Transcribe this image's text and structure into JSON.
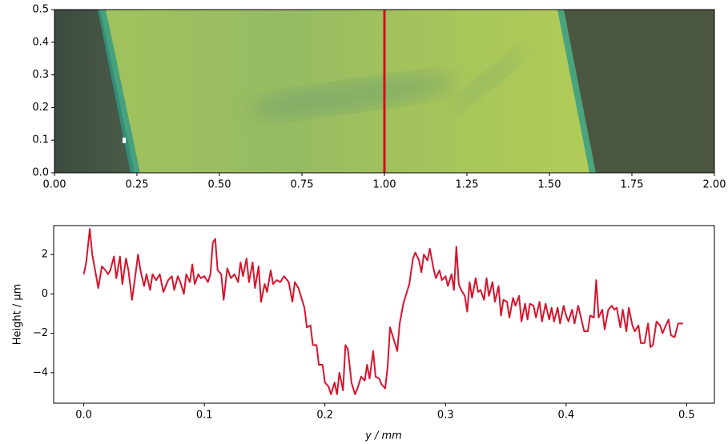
{
  "chart_data": [
    {
      "type": "image",
      "xlim": [
        0,
        2
      ],
      "ylim": [
        0,
        0.5
      ],
      "xticks": [
        {
          "value": 0,
          "label": "0.00"
        },
        {
          "value": 0.25,
          "label": "0.25"
        },
        {
          "value": 0.5,
          "label": "0.50"
        },
        {
          "value": 0.75,
          "label": "0.75"
        },
        {
          "value": 1,
          "label": "1.00"
        },
        {
          "value": 1.25,
          "label": "1.25"
        },
        {
          "value": 1.5,
          "label": "1.50"
        },
        {
          "value": 1.75,
          "label": "1.75"
        },
        {
          "value": 2,
          "label": "2.00"
        }
      ],
      "yticks": [
        {
          "value": 0,
          "label": "0.0"
        },
        {
          "value": 0.1,
          "label": "0.1"
        },
        {
          "value": 0.2,
          "label": "0.2"
        },
        {
          "value": 0.3,
          "label": "0.3"
        },
        {
          "value": 0.4,
          "label": "0.4"
        },
        {
          "value": 0.5,
          "label": "0.5"
        }
      ],
      "vline": {
        "x": 1.0,
        "color": "#d0101c"
      }
    },
    {
      "type": "line",
      "xlabel": "y / mm",
      "ylabel": "Height / µm",
      "xlim": [
        -0.025,
        0.523
      ],
      "ylim": [
        -5.55,
        3.47
      ],
      "xticks": [
        {
          "value": 0,
          "label": "0.0"
        },
        0.1,
        0.2,
        0.3,
        0.4,
        0.5
      ],
      "yticks": [
        {
          "value": -4,
          "label": "−4"
        },
        {
          "value": -2,
          "label": "−2"
        },
        0,
        2
      ],
      "x": [
        0.0,
        0.002,
        0.005,
        0.007,
        0.01,
        0.012,
        0.015,
        0.018,
        0.02,
        0.022,
        0.025,
        0.027,
        0.03,
        0.032,
        0.035,
        0.037,
        0.04,
        0.042,
        0.045,
        0.047,
        0.05,
        0.052,
        0.055,
        0.057,
        0.06,
        0.063,
        0.066,
        0.07,
        0.073,
        0.075,
        0.078,
        0.08,
        0.083,
        0.085,
        0.088,
        0.09,
        0.092,
        0.095,
        0.097,
        0.1,
        0.103,
        0.105,
        0.107,
        0.109,
        0.111,
        0.114,
        0.116,
        0.119,
        0.122,
        0.125,
        0.128,
        0.13,
        0.132,
        0.135,
        0.137,
        0.14,
        0.142,
        0.145,
        0.147,
        0.15,
        0.152,
        0.155,
        0.157,
        0.16,
        0.163,
        0.166,
        0.17,
        0.173,
        0.175,
        0.178,
        0.18,
        0.183,
        0.185,
        0.188,
        0.19,
        0.193,
        0.195,
        0.198,
        0.2,
        0.203,
        0.205,
        0.208,
        0.21,
        0.212,
        0.215,
        0.217,
        0.219,
        0.222,
        0.225,
        0.227,
        0.23,
        0.233,
        0.235,
        0.237,
        0.24,
        0.242,
        0.245,
        0.247,
        0.25,
        0.252,
        0.254,
        0.257,
        0.26,
        0.262,
        0.265,
        0.268,
        0.27,
        0.273,
        0.275,
        0.278,
        0.28,
        0.282,
        0.285,
        0.287,
        0.29,
        0.292,
        0.295,
        0.297,
        0.3,
        0.302,
        0.305,
        0.307,
        0.309,
        0.311,
        0.313,
        0.316,
        0.318,
        0.32,
        0.322,
        0.325,
        0.327,
        0.329,
        0.332,
        0.334,
        0.336,
        0.339,
        0.341,
        0.344,
        0.346,
        0.348,
        0.351,
        0.353,
        0.356,
        0.358,
        0.361,
        0.363,
        0.366,
        0.368,
        0.37,
        0.373,
        0.375,
        0.378,
        0.38,
        0.383,
        0.386,
        0.388,
        0.39,
        0.393,
        0.395,
        0.398,
        0.4,
        0.402,
        0.405,
        0.407,
        0.41,
        0.412,
        0.415,
        0.418,
        0.42,
        0.423,
        0.425,
        0.427,
        0.43,
        0.432,
        0.435,
        0.438,
        0.44,
        0.442,
        0.445,
        0.447,
        0.45,
        0.452,
        0.455,
        0.457,
        0.46,
        0.462,
        0.465,
        0.468,
        0.47,
        0.472,
        0.475,
        0.478,
        0.48,
        0.482,
        0.485,
        0.487,
        0.49,
        0.493,
        0.495,
        0.497
      ],
      "series": [
        {
          "color": "#d7142d",
          "values": [
            1.0,
            1.6,
            3.3,
            2.0,
            1.0,
            0.3,
            1.4,
            1.2,
            1.0,
            1.2,
            1.9,
            0.8,
            1.9,
            0.5,
            1.8,
            1.2,
            -0.3,
            0.6,
            2.0,
            1.2,
            0.4,
            1.0,
            0.2,
            1.0,
            0.7,
            1.0,
            0.1,
            0.7,
            0.9,
            0.2,
            0.9,
            0.6,
            0.0,
            1.0,
            0.6,
            1.5,
            0.5,
            1.0,
            0.8,
            0.9,
            0.6,
            1.0,
            2.6,
            2.8,
            1.2,
            1.0,
            -0.3,
            1.3,
            0.8,
            1.0,
            0.6,
            1.6,
            0.9,
            1.8,
            0.6,
            1.6,
            0.3,
            1.4,
            -0.4,
            0.5,
            0.1,
            1.2,
            0.5,
            0.7,
            0.6,
            0.9,
            0.6,
            -0.4,
            0.6,
            0.3,
            -0.1,
            -0.7,
            -1.7,
            -1.6,
            -2.6,
            -2.6,
            -3.6,
            -3.6,
            -4.5,
            -4.7,
            -5.1,
            -4.5,
            -5.1,
            -4.0,
            -4.9,
            -2.6,
            -2.8,
            -4.5,
            -5.1,
            -4.8,
            -4.2,
            -4.4,
            -3.6,
            -4.3,
            -2.9,
            -4.2,
            -4.3,
            -4.6,
            -4.8,
            -3.7,
            -1.7,
            -2.3,
            -2.9,
            -1.5,
            -0.5,
            0.1,
            0.5,
            1.8,
            2.1,
            1.7,
            1.1,
            2.0,
            1.7,
            2.3,
            1.3,
            0.8,
            1.2,
            0.7,
            0.9,
            0.4,
            1.0,
            0.2,
            2.4,
            0.5,
            0.2,
            -0.1,
            -0.9,
            0.6,
            -0.2,
            0.8,
            0.1,
            0.2,
            -0.3,
            0.8,
            -0.1,
            0.6,
            -0.4,
            0.4,
            -1.1,
            -0.3,
            -0.4,
            -1.2,
            -0.2,
            -0.6,
            -0.1,
            -1.4,
            -0.5,
            -1.3,
            -0.5,
            -0.6,
            -1.2,
            -0.4,
            -1.4,
            -0.5,
            -1.3,
            -0.7,
            -1.4,
            -0.7,
            -1.5,
            -0.6,
            -1.1,
            -1.4,
            -0.8,
            -1.5,
            -0.6,
            -1.1,
            -1.9,
            -1.9,
            -1.1,
            -1.2,
            0.7,
            -1.2,
            -0.8,
            -1.8,
            -0.8,
            -0.6,
            -0.8,
            -0.7,
            -1.7,
            -0.8,
            -1.9,
            -0.7,
            -1.6,
            -1.9,
            -1.6,
            -2.5,
            -2.5,
            -1.5,
            -2.7,
            -2.6,
            -1.4,
            -1.6,
            -2.0,
            -1.7,
            -1.3,
            -2.1,
            -2.2,
            -1.5,
            -1.5,
            -1.5
          ]
        }
      ]
    }
  ]
}
